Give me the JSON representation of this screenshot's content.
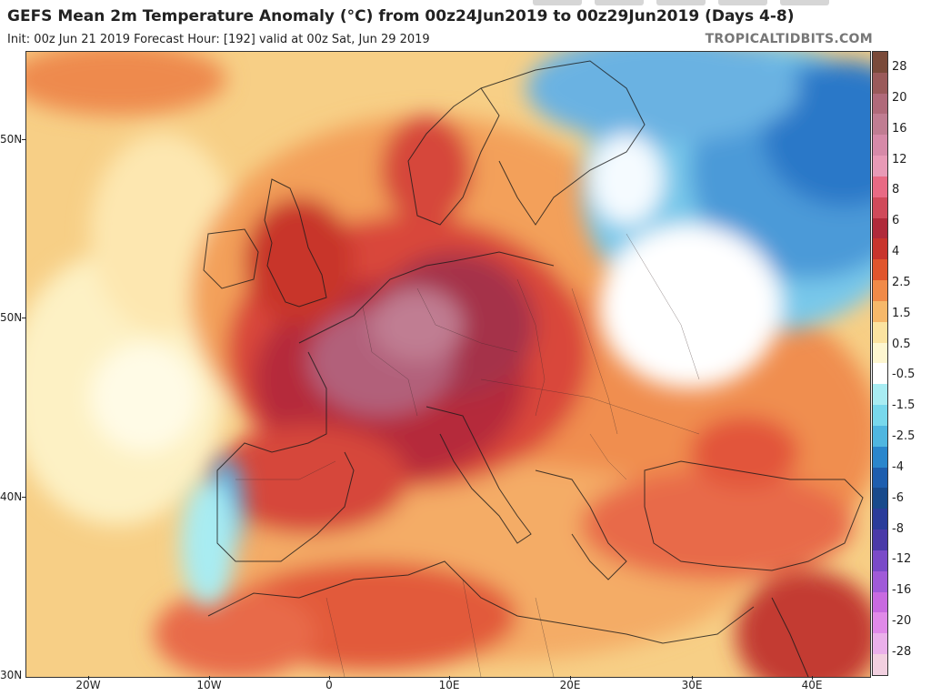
{
  "header": {
    "title": "GEFS Mean 2m Temperature Anomaly (°C) from 00z24Jun2019 to 00z29Jun2019 (Days 4-8)",
    "subtitle": "Init: 00z Jun 21 2019   Forecast Hour: [192]   valid at 00z Sat, Jun 29 2019",
    "watermark": "TROPICALTIDBITS.COM"
  },
  "axes": {
    "lat_labels": [
      "50N",
      "50N",
      "40N",
      "30N"
    ],
    "lon_labels": [
      "20W",
      "10W",
      "0",
      "10E",
      "20E",
      "30E",
      "40E"
    ]
  },
  "legend": {
    "labels": [
      "28",
      "20",
      "16",
      "12",
      "8",
      "6",
      "4",
      "2.5",
      "1.5",
      "0.5",
      "-0.5",
      "-1.5",
      "-2.5",
      "-4",
      "-6",
      "-8",
      "-12",
      "-16",
      "-20",
      "-28"
    ],
    "colors": [
      "#7a4a3a",
      "#9a5a5a",
      "#b06a7a",
      "#c07d92",
      "#d68aa8",
      "#e89ab6",
      "#e86a84",
      "#d04a5a",
      "#b02a3a",
      "#c8342c",
      "#e0552c",
      "#f08a48",
      "#f6b86a",
      "#fbe3a0",
      "#fdf6d0",
      "#ffffff",
      "#a8ecf2",
      "#78d8ec",
      "#4fb6e0",
      "#2a86cc",
      "#1e5eae",
      "#184a8c",
      "#2a3c9a",
      "#4a3aa8",
      "#7a4ac8",
      "#a05ad8",
      "#c86ae0",
      "#e08ae8",
      "#eab0ea",
      "#f2d0e0"
    ]
  },
  "map": {
    "variable": "2m temperature anomaly",
    "units": "°C",
    "region": "Europe, North Africa, Middle East"
  }
}
